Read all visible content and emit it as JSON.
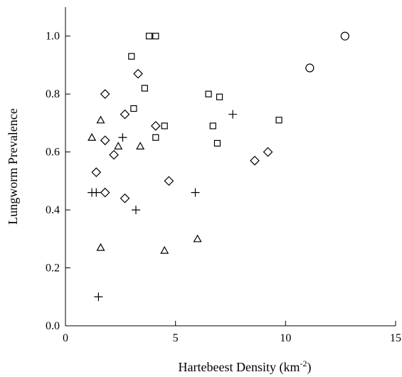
{
  "chart_data": {
    "type": "scatter",
    "title": "",
    "xlabel": "Hartebeest Density (km",
    "xlabel_sup": "-2",
    "xlabel_end": ")",
    "ylabel": "Lungworm Prevalence",
    "xlim": [
      0,
      15
    ],
    "ylim": [
      0,
      1.1
    ],
    "x_ticks": [
      0,
      5,
      10,
      15
    ],
    "x_tick_labels": [
      "0",
      "5",
      "10",
      "15"
    ],
    "y_ticks": [
      0,
      0.2,
      0.4,
      0.6,
      0.8,
      1.0
    ],
    "y_tick_labels": [
      "0.0",
      "0.2",
      "0.4",
      "0.6",
      "0.8",
      "1.0"
    ],
    "grid": false,
    "series": [
      {
        "marker": "square",
        "points": [
          [
            3.0,
            0.93
          ],
          [
            3.8,
            1.0
          ],
          [
            4.1,
            1.0
          ],
          [
            3.6,
            0.82
          ],
          [
            3.1,
            0.75
          ],
          [
            4.5,
            0.69
          ],
          [
            4.1,
            0.65
          ],
          [
            6.5,
            0.8
          ],
          [
            7.0,
            0.79
          ],
          [
            6.7,
            0.69
          ],
          [
            6.9,
            0.63
          ],
          [
            9.7,
            0.71
          ]
        ]
      },
      {
        "marker": "diamond",
        "points": [
          [
            1.8,
            0.8
          ],
          [
            3.3,
            0.87
          ],
          [
            2.7,
            0.73
          ],
          [
            1.8,
            0.64
          ],
          [
            4.1,
            0.69
          ],
          [
            2.2,
            0.59
          ],
          [
            1.4,
            0.53
          ],
          [
            1.8,
            0.46
          ],
          [
            2.7,
            0.44
          ],
          [
            4.7,
            0.5
          ],
          [
            8.6,
            0.57
          ],
          [
            9.2,
            0.6
          ]
        ]
      },
      {
        "marker": "triangle",
        "points": [
          [
            1.6,
            0.71
          ],
          [
            1.2,
            0.65
          ],
          [
            2.4,
            0.62
          ],
          [
            3.4,
            0.62
          ],
          [
            1.6,
            0.27
          ],
          [
            4.5,
            0.26
          ],
          [
            6.0,
            0.3
          ]
        ]
      },
      {
        "marker": "plus",
        "points": [
          [
            2.6,
            0.65
          ],
          [
            1.2,
            0.46
          ],
          [
            1.4,
            0.46
          ],
          [
            3.2,
            0.4
          ],
          [
            1.5,
            0.1
          ],
          [
            5.9,
            0.46
          ],
          [
            7.6,
            0.73
          ]
        ]
      },
      {
        "marker": "circle",
        "points": [
          [
            11.1,
            0.89
          ],
          [
            12.7,
            1.0
          ]
        ]
      }
    ]
  }
}
